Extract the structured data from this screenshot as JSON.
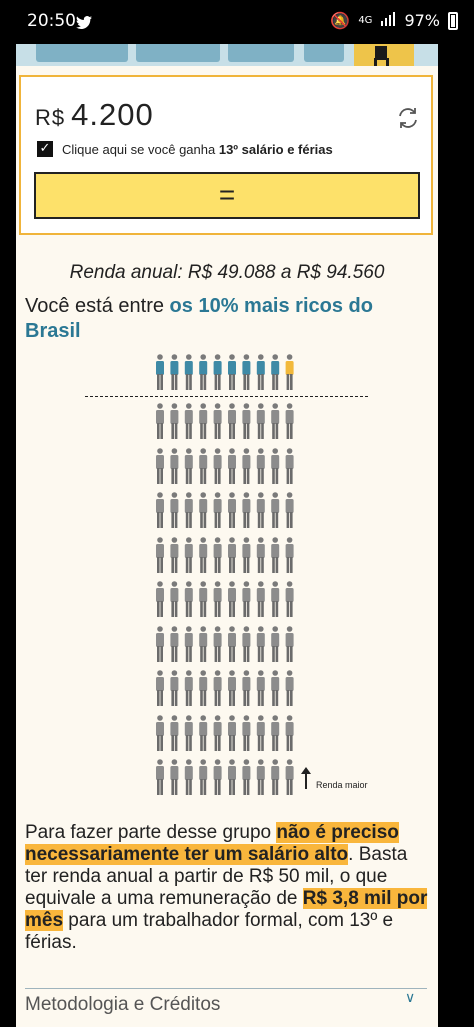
{
  "status_bar": {
    "time": "20:50",
    "network": "4G",
    "battery": "97%"
  },
  "calculator": {
    "currency": "R$",
    "amount": "4.200",
    "checkbox_label_prefix": "Clique aqui se você ganha ",
    "checkbox_label_bold": "13º salário e férias",
    "checked": true,
    "equals_label": "="
  },
  "result": {
    "annual_income": "Renda anual: R$ 49.088 a R$ 94.560",
    "headline_prefix": "Você está entre ",
    "headline_highlight": "os 10% mais ricos do Brasil"
  },
  "pictogram": {
    "columns": 10,
    "top_row_blue": 9,
    "top_row_yellow": 1,
    "gray_rows": 9,
    "colors": {
      "blue": "#3e8aa6",
      "yellow": "#f2b93b",
      "gray": "#8c8c8c"
    },
    "axis_label": "Renda maior"
  },
  "paragraph": {
    "p1": "Para fazer parte desse grupo ",
    "mark1": "não é preciso necessariamente ter um salário alto",
    "p2": ". Basta ter renda anual a partir de R$ 50 mil, o que equivale a uma remuneração de ",
    "mark2": "R$ 3,8 mil por mês",
    "p3": " para um trabalhador formal, com 13º e férias."
  },
  "methodology": {
    "label": "Metodologia e Créditos"
  }
}
